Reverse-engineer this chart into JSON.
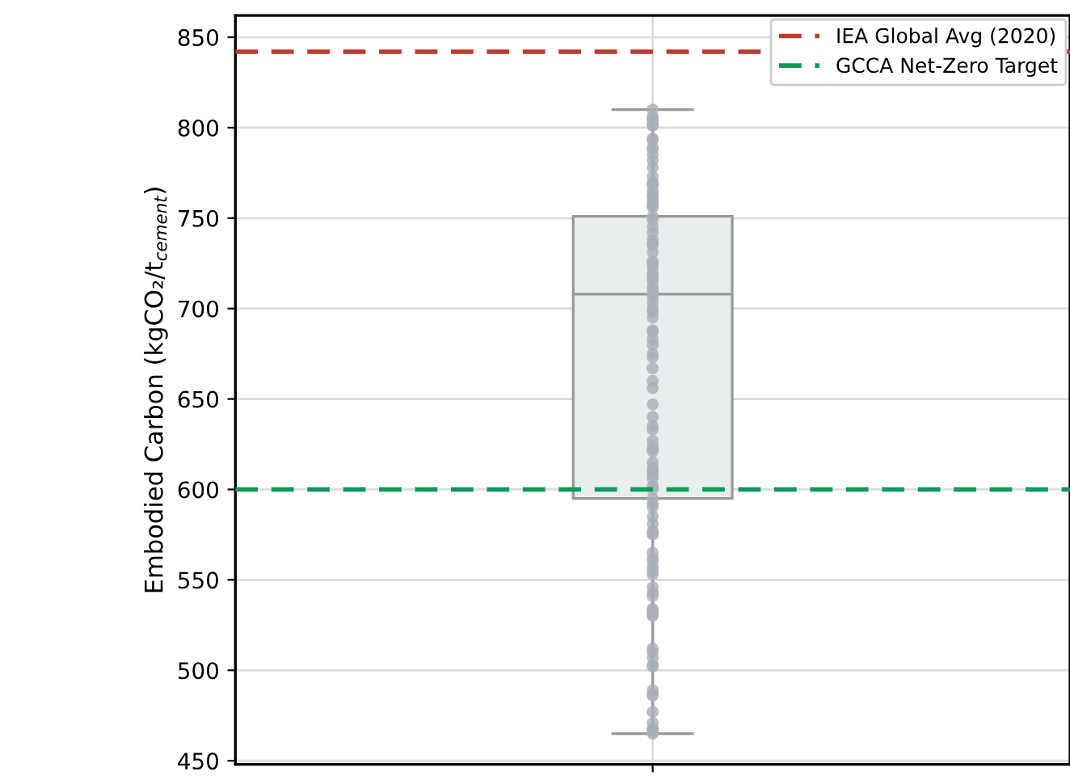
{
  "chart_data": {
    "type": "box",
    "ylabel": "Embodied Carbon (kgCO₂/t$_{cement}$)",
    "categories": [
      null
    ],
    "ylim": [
      448,
      862
    ],
    "yticks": [
      450,
      500,
      550,
      600,
      650,
      700,
      750,
      800,
      850
    ],
    "grid": true,
    "legend": "top right",
    "ref_lines": [
      {
        "axis": "y",
        "value": 842,
        "label": "IEA Global Avg (2020)",
        "color": "#c0392b",
        "line_style": "dashed"
      },
      {
        "axis": "y",
        "value": 600,
        "label": "GCCA Net-Zero Target",
        "color": "#0e9a5a",
        "line_style": "dashed"
      }
    ],
    "series": [
      {
        "color": "#e8eded",
        "boxes": [
          {
            "low": 465,
            "q1": 595,
            "median": 708,
            "q3": 751,
            "high": 810
          }
        ]
      },
      {
        "type": "scatter",
        "color": "#a9aeb7",
        "x": [
          null,
          null,
          null,
          null,
          null,
          null,
          null,
          null,
          null,
          null,
          null,
          null,
          null,
          null,
          null,
          null,
          null,
          null,
          null,
          null,
          null,
          null,
          null,
          null,
          null,
          null,
          null,
          null,
          null,
          null,
          null,
          null,
          null,
          null,
          null,
          null,
          null,
          null,
          null,
          null,
          null,
          null,
          null,
          null,
          null,
          null,
          null,
          null,
          null,
          null,
          null,
          null,
          null,
          null,
          null,
          null,
          null,
          null,
          null,
          null,
          null,
          null,
          null,
          null,
          null,
          null,
          null,
          null,
          null,
          null,
          null,
          null,
          null,
          null,
          null,
          null,
          null,
          null,
          null,
          null,
          null,
          null,
          null,
          null,
          null,
          null,
          null,
          null,
          null,
          null,
          null,
          null,
          null,
          null,
          null,
          null,
          null,
          null,
          null,
          null,
          null,
          null,
          null,
          null,
          null,
          null
        ],
        "values": [
          810,
          806,
          805,
          804,
          802,
          801,
          793,
          794,
          789,
          788,
          785,
          782,
          778,
          773,
          770,
          769,
          768,
          765,
          763,
          762,
          760,
          758,
          757,
          756,
          751,
          749,
          745,
          742,
          738,
          736,
          735,
          731,
          726,
          725,
          723,
          720,
          718,
          717,
          715,
          712,
          710,
          708,
          706,
          703,
          700,
          698,
          695,
          688,
          687,
          683,
          680,
          675,
          673,
          667,
          660,
          656,
          647,
          640,
          635,
          633,
          627,
          624,
          622,
          621,
          615,
          612,
          610,
          608,
          606,
          602,
          600,
          595,
          592,
          590,
          585,
          581,
          577,
          576,
          575,
          565,
          562,
          560,
          557,
          555,
          553,
          546,
          543,
          541,
          534,
          533,
          531,
          530,
          512,
          510,
          507,
          503,
          502,
          489,
          487,
          486,
          477,
          471,
          468,
          467,
          466,
          465
        ]
      }
    ]
  }
}
